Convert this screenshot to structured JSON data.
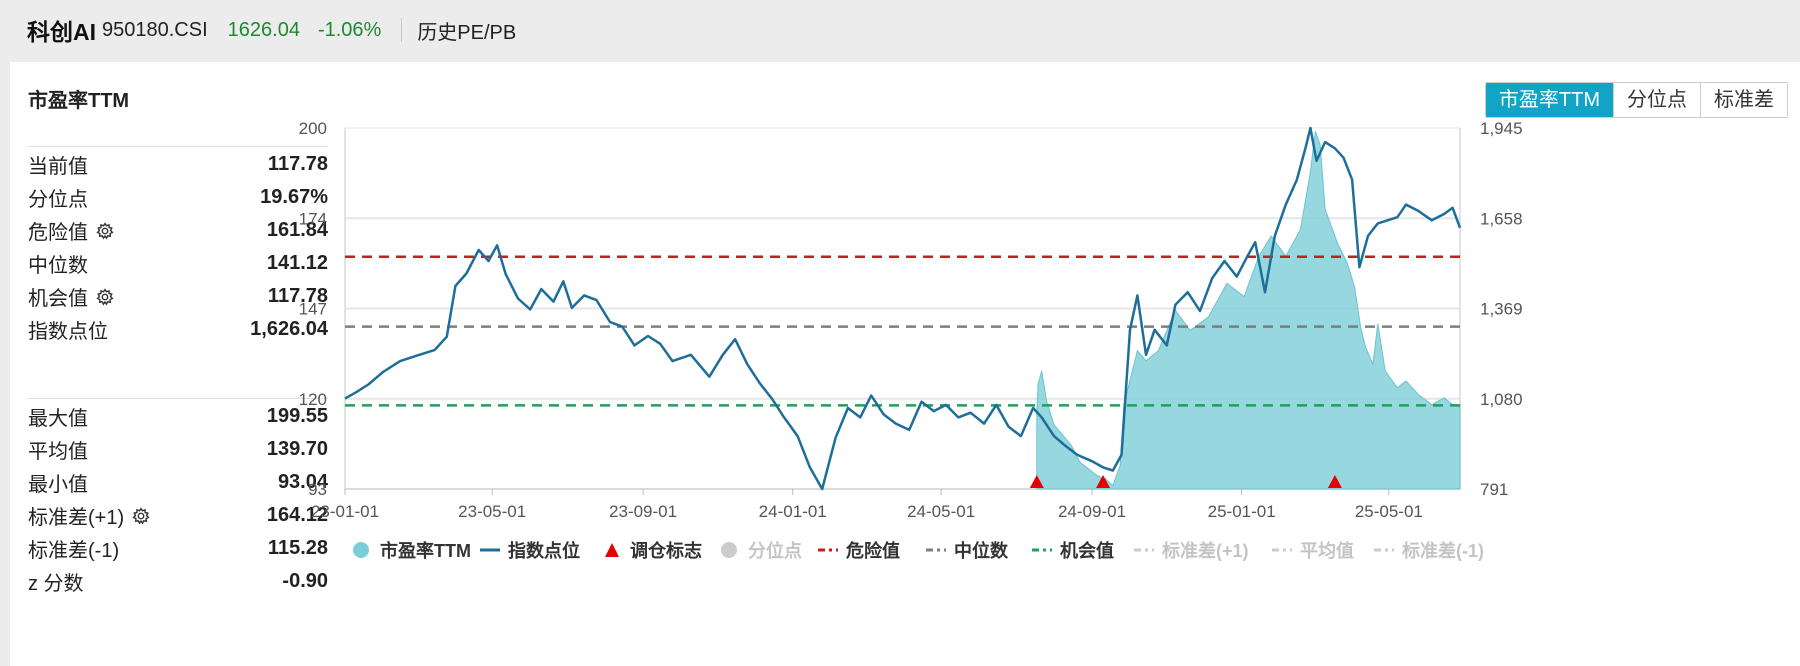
{
  "header": {
    "name": "科创AI",
    "code": "950180.CSI",
    "price": "1626.04",
    "change": "-1.06%",
    "history_link": "历史PE/PB"
  },
  "panel_title": "市盈率TTM",
  "tabs": [
    {
      "label": "市盈率TTM",
      "active": true
    },
    {
      "label": "分位点",
      "active": false
    },
    {
      "label": "标准差",
      "active": false
    }
  ],
  "stats_top": [
    {
      "label": "当前值",
      "value": "117.78",
      "gear": false
    },
    {
      "label": "分位点",
      "value": "19.67%",
      "gear": false
    },
    {
      "label": "危险值",
      "value": "161.84",
      "gear": true
    },
    {
      "label": "中位数",
      "value": "141.12",
      "gear": false
    },
    {
      "label": "机会值",
      "value": "117.78",
      "gear": true
    },
    {
      "label": "指数点位",
      "value": "1,626.04",
      "gear": false
    }
  ],
  "stats_bottom": [
    {
      "label": "最大值",
      "value": "199.55",
      "gear": false
    },
    {
      "label": "平均值",
      "value": "139.70",
      "gear": false
    },
    {
      "label": "最小值",
      "value": "93.04",
      "gear": false
    },
    {
      "label": "标准差(+1)",
      "value": "164.12",
      "gear": true
    },
    {
      "label": "标准差(-1)",
      "value": "115.28",
      "gear": false
    },
    {
      "label": "z 分数",
      "value": "-0.90",
      "gear": false
    }
  ],
  "colors": {
    "accent": "#12a3c6",
    "pe_fill": "#7ccdd8",
    "index_line": "#1f6e99",
    "danger": "#c21f1f",
    "median": "#7d7d7d",
    "opportunity": "#1fa05a",
    "marker": "#e60000",
    "inactive": "#cccccc",
    "positive_green": "#1e8a2e"
  },
  "chart_data": {
    "type": "line",
    "x_range": [
      "2023-01-01",
      "2025-06-28"
    ],
    "x_ticks": [
      "23-01-01",
      "23-05-01",
      "23-09-01",
      "24-01-01",
      "24-05-01",
      "24-09-01",
      "25-01-01",
      "25-05-01"
    ],
    "x_tick_dates": [
      "2023-01-01",
      "2023-05-01",
      "2023-09-01",
      "2024-01-01",
      "2024-05-01",
      "2024-09-01",
      "2025-01-01",
      "2025-05-01"
    ],
    "y_left": {
      "ticks": [
        "200",
        "174",
        "147",
        "120",
        "93"
      ],
      "range": [
        93,
        200
      ]
    },
    "y_right": {
      "ticks": [
        "1,945",
        "1,658",
        "1,369",
        "1,080",
        "791"
      ],
      "range": [
        791,
        1945
      ]
    },
    "reference_lines": {
      "danger": 161.84,
      "median": 141.12,
      "opportunity": 117.78
    },
    "pe_ttm": [
      [
        "2024-07-18",
        115
      ],
      [
        "2024-07-19",
        124
      ],
      [
        "2024-07-22",
        128
      ],
      [
        "2024-07-26",
        119
      ],
      [
        "2024-08-01",
        112
      ],
      [
        "2024-08-08",
        109
      ],
      [
        "2024-08-15",
        106
      ],
      [
        "2024-08-22",
        101
      ],
      [
        "2024-08-29",
        99
      ],
      [
        "2024-09-05",
        97
      ],
      [
        "2024-09-12",
        96
      ],
      [
        "2024-09-18",
        94
      ],
      [
        "2024-09-24",
        100
      ],
      [
        "2024-09-27",
        118
      ],
      [
        "2024-10-08",
        134
      ],
      [
        "2024-10-15",
        131
      ],
      [
        "2024-10-25",
        134
      ],
      [
        "2024-11-08",
        146
      ],
      [
        "2024-11-20",
        140
      ],
      [
        "2024-12-05",
        144
      ],
      [
        "2024-12-20",
        154
      ],
      [
        "2025-01-03",
        150
      ],
      [
        "2025-01-15",
        162
      ],
      [
        "2025-01-25",
        168
      ],
      [
        "2025-02-06",
        162
      ],
      [
        "2025-02-18",
        170
      ],
      [
        "2025-02-26",
        187
      ],
      [
        "2025-03-02",
        199
      ],
      [
        "2025-03-06",
        195
      ],
      [
        "2025-03-10",
        176
      ],
      [
        "2025-03-14",
        172
      ],
      [
        "2025-03-20",
        166
      ],
      [
        "2025-03-28",
        160
      ],
      [
        "2025-04-03",
        153
      ],
      [
        "2025-04-08",
        141
      ],
      [
        "2025-04-12",
        135
      ],
      [
        "2025-04-18",
        130
      ],
      [
        "2025-04-22",
        142
      ],
      [
        "2025-04-28",
        128
      ],
      [
        "2025-05-08",
        123
      ],
      [
        "2025-05-15",
        125
      ],
      [
        "2025-05-25",
        121
      ],
      [
        "2025-06-05",
        118
      ],
      [
        "2025-06-15",
        120
      ],
      [
        "2025-06-22",
        118
      ],
      [
        "2025-06-28",
        118
      ]
    ],
    "index_points": [
      [
        "2023-01-01",
        1080
      ],
      [
        "2023-01-10",
        1100
      ],
      [
        "2023-01-20",
        1125
      ],
      [
        "2023-02-01",
        1165
      ],
      [
        "2023-02-15",
        1200
      ],
      [
        "2023-03-01",
        1218
      ],
      [
        "2023-03-15",
        1235
      ],
      [
        "2023-03-25",
        1278
      ],
      [
        "2023-04-01",
        1440
      ],
      [
        "2023-04-10",
        1480
      ],
      [
        "2023-04-20",
        1555
      ],
      [
        "2023-04-28",
        1520
      ],
      [
        "2023-05-05",
        1570
      ],
      [
        "2023-05-12",
        1478
      ],
      [
        "2023-05-22",
        1400
      ],
      [
        "2023-06-01",
        1365
      ],
      [
        "2023-06-10",
        1430
      ],
      [
        "2023-06-20",
        1390
      ],
      [
        "2023-06-28",
        1455
      ],
      [
        "2023-07-05",
        1370
      ],
      [
        "2023-07-15",
        1410
      ],
      [
        "2023-07-25",
        1395
      ],
      [
        "2023-08-05",
        1325
      ],
      [
        "2023-08-15",
        1310
      ],
      [
        "2023-08-25",
        1250
      ],
      [
        "2023-09-05",
        1280
      ],
      [
        "2023-09-15",
        1255
      ],
      [
        "2023-09-25",
        1200
      ],
      [
        "2023-10-10",
        1220
      ],
      [
        "2023-10-25",
        1150
      ],
      [
        "2023-11-05",
        1220
      ],
      [
        "2023-11-15",
        1270
      ],
      [
        "2023-11-25",
        1190
      ],
      [
        "2023-12-05",
        1130
      ],
      [
        "2023-12-15",
        1080
      ],
      [
        "2023-12-25",
        1020
      ],
      [
        "2024-01-05",
        960
      ],
      [
        "2024-01-15",
        860
      ],
      [
        "2024-01-25",
        791
      ],
      [
        "2024-02-05",
        955
      ],
      [
        "2024-02-15",
        1050
      ],
      [
        "2024-02-25",
        1020
      ],
      [
        "2024-03-05",
        1090
      ],
      [
        "2024-03-15",
        1030
      ],
      [
        "2024-03-25",
        1000
      ],
      [
        "2024-04-05",
        980
      ],
      [
        "2024-04-15",
        1070
      ],
      [
        "2024-04-25",
        1040
      ],
      [
        "2024-05-05",
        1060
      ],
      [
        "2024-05-15",
        1020
      ],
      [
        "2024-05-25",
        1035
      ],
      [
        "2024-06-05",
        1000
      ],
      [
        "2024-06-15",
        1060
      ],
      [
        "2024-06-25",
        990
      ],
      [
        "2024-07-05",
        960
      ],
      [
        "2024-07-15",
        1050
      ],
      [
        "2024-07-22",
        1020
      ],
      [
        "2024-08-01",
        960
      ],
      [
        "2024-08-10",
        930
      ],
      [
        "2024-08-20",
        900
      ],
      [
        "2024-09-01",
        880
      ],
      [
        "2024-09-10",
        860
      ],
      [
        "2024-09-18",
        850
      ],
      [
        "2024-09-25",
        900
      ],
      [
        "2024-10-02",
        1300
      ],
      [
        "2024-10-08",
        1410
      ],
      [
        "2024-10-15",
        1220
      ],
      [
        "2024-10-22",
        1300
      ],
      [
        "2024-11-01",
        1250
      ],
      [
        "2024-11-08",
        1380
      ],
      [
        "2024-11-18",
        1420
      ],
      [
        "2024-11-28",
        1360
      ],
      [
        "2024-12-08",
        1465
      ],
      [
        "2024-12-18",
        1520
      ],
      [
        "2024-12-28",
        1470
      ],
      [
        "2025-01-05",
        1530
      ],
      [
        "2025-01-12",
        1580
      ],
      [
        "2025-01-20",
        1420
      ],
      [
        "2025-01-28",
        1600
      ],
      [
        "2025-02-06",
        1700
      ],
      [
        "2025-02-15",
        1780
      ],
      [
        "2025-02-22",
        1880
      ],
      [
        "2025-02-26",
        1945
      ],
      [
        "2025-03-03",
        1840
      ],
      [
        "2025-03-10",
        1900
      ],
      [
        "2025-03-18",
        1880
      ],
      [
        "2025-03-25",
        1850
      ],
      [
        "2025-04-01",
        1780
      ],
      [
        "2025-04-07",
        1500
      ],
      [
        "2025-04-14",
        1600
      ],
      [
        "2025-04-22",
        1640
      ],
      [
        "2025-04-30",
        1650
      ],
      [
        "2025-05-08",
        1660
      ],
      [
        "2025-05-15",
        1700
      ],
      [
        "2025-05-25",
        1680
      ],
      [
        "2025-06-05",
        1650
      ],
      [
        "2025-06-15",
        1670
      ],
      [
        "2025-06-22",
        1690
      ],
      [
        "2025-06-28",
        1626
      ]
    ],
    "rebalance_markers": [
      "2024-07-18",
      "2024-09-10",
      "2025-03-18"
    ],
    "legend": [
      {
        "label": "市盈率TTM",
        "symbol": "dot",
        "color": "#7ccdd8",
        "active": true
      },
      {
        "label": "指数点位",
        "symbol": "line",
        "color": "#1f6e99",
        "active": true
      },
      {
        "label": "调仓标志",
        "symbol": "triangle",
        "color": "#e60000",
        "active": true
      },
      {
        "label": "分位点",
        "symbol": "dot",
        "color": "#cccccc",
        "active": false
      },
      {
        "label": "危险值",
        "symbol": "dash",
        "color": "#c21f1f",
        "active": true
      },
      {
        "label": "中位数",
        "symbol": "dash",
        "color": "#7d7d7d",
        "active": true
      },
      {
        "label": "机会值",
        "symbol": "dash",
        "color": "#1fa05a",
        "active": true
      },
      {
        "label": "标准差(+1)",
        "symbol": "dash",
        "color": "#cccccc",
        "active": false
      },
      {
        "label": "平均值",
        "symbol": "dash",
        "color": "#cccccc",
        "active": false
      },
      {
        "label": "标准差(-1)",
        "symbol": "dash",
        "color": "#cccccc",
        "active": false
      }
    ]
  }
}
